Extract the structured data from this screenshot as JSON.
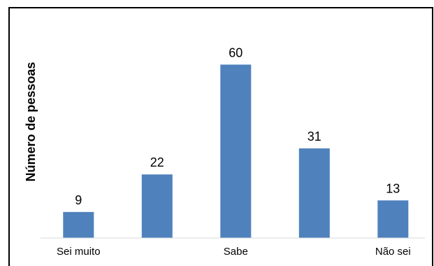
{
  "chart_data": {
    "type": "bar",
    "categories": [
      "Sei muito",
      "",
      "Sabe",
      "",
      "Não sei"
    ],
    "values": [
      9,
      22,
      60,
      31,
      13
    ],
    "data_labels": [
      "9",
      "22",
      "60",
      "31",
      "13"
    ],
    "title": "",
    "xlabel": "",
    "ylabel": "Número de pessoas",
    "ylim": [
      0,
      70
    ],
    "grid": false,
    "legend": "none",
    "bar_color": "#4f81bd"
  }
}
